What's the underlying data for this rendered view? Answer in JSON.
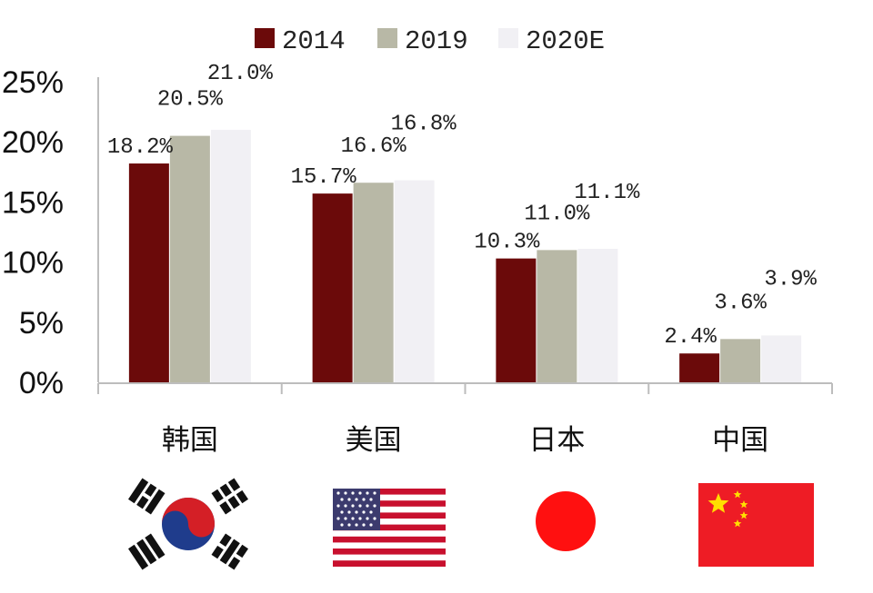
{
  "chart_data": {
    "type": "bar",
    "categories": [
      "韩国",
      "美国",
      "日本",
      "中国"
    ],
    "series": [
      {
        "name": "2014",
        "color": "#6b0a0a",
        "values": [
          18.2,
          15.7,
          10.3,
          2.4
        ],
        "labels": [
          "18.2%",
          "15.7%",
          "10.3%",
          "2.4%"
        ]
      },
      {
        "name": "2019",
        "color": "#b8b8a6",
        "values": [
          20.5,
          16.6,
          11.0,
          3.6
        ],
        "labels": [
          "20.5%",
          "16.6%",
          "11.0%",
          "3.6%"
        ]
      },
      {
        "name": "2020E",
        "color": "#f1f0f4",
        "values": [
          21.0,
          16.8,
          11.1,
          3.9
        ],
        "labels": [
          "21.0%",
          "16.8%",
          "11.1%",
          "3.9%"
        ]
      }
    ],
    "ylim": [
      0,
      25
    ],
    "yticks": [
      0,
      5,
      10,
      15,
      20,
      25
    ],
    "ytick_labels": [
      "0%",
      "5%",
      "10%",
      "15%",
      "20%",
      "25%"
    ],
    "legend_position": "top",
    "grid": false,
    "flags": [
      "korea-flag",
      "usa-flag",
      "japan-flag",
      "china-flag"
    ]
  }
}
